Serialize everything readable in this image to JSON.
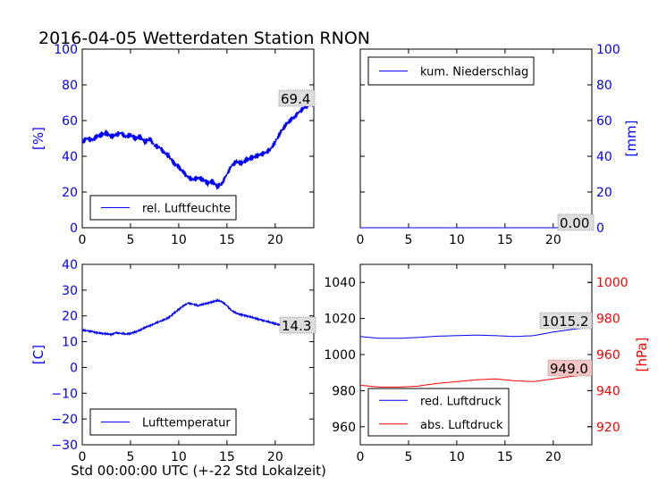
{
  "title": "2016-04-05 Wetterdaten Station RNON",
  "footer_xlabel": "Std 00:00:00 UTC (+-22 Std Lokalzeit)",
  "colors": {
    "blue": "#0000ff",
    "red": "#ff0000",
    "axis": "#000000",
    "annot_bg": "#dddddd",
    "annot_bg_red": "#f4c4c4"
  },
  "chart_data": [
    {
      "id": "humidity",
      "type": "line",
      "xlim": [
        0,
        24
      ],
      "xticks": [
        0,
        5,
        10,
        15,
        20
      ],
      "ylim": [
        0,
        100
      ],
      "yticks": [
        0,
        20,
        40,
        60,
        80,
        100
      ],
      "ylabel": "[%]",
      "ylabel_side": "left",
      "tick_color": "#0000ff",
      "legend_position": "lower-left",
      "annotation": "69.4",
      "series": [
        {
          "name": "rel. Luftfeuchte",
          "color": "#0000ff",
          "x": [
            0,
            0.5,
            1,
            1.5,
            2,
            2.5,
            3,
            3.5,
            4,
            4.5,
            5,
            5.5,
            6,
            6.5,
            7,
            7.5,
            8,
            8.5,
            9,
            9.5,
            10,
            10.5,
            11,
            11.5,
            12,
            12.5,
            13,
            13.5,
            14,
            14.5,
            15,
            15.5,
            16,
            16.5,
            17,
            17.5,
            18,
            18.5,
            19,
            19.5,
            20,
            20.5,
            21,
            21.5,
            22,
            22.5,
            23,
            23.5,
            24
          ],
          "y": [
            48,
            50,
            49,
            51,
            52,
            53,
            51,
            52,
            53,
            51,
            52,
            50,
            51,
            48,
            50,
            46,
            45,
            42,
            40,
            36,
            34,
            31,
            28,
            27,
            28,
            27,
            25,
            26,
            23,
            25,
            30,
            35,
            37,
            36,
            38,
            39,
            40,
            41,
            42,
            44,
            48,
            53,
            57,
            60,
            62,
            65,
            67,
            69,
            69.4
          ]
        }
      ]
    },
    {
      "id": "precip",
      "type": "line",
      "xlim": [
        0,
        24
      ],
      "xticks": [
        0,
        5,
        10,
        15,
        20
      ],
      "ylim": [
        0,
        100
      ],
      "yticks": [
        0,
        20,
        40,
        60,
        80,
        100
      ],
      "ylabel": "[mm]",
      "ylabel_side": "right",
      "tick_color": "#0000ff",
      "legend_position": "upper-left",
      "annotation": "0.00",
      "series": [
        {
          "name": "kum. Niederschlag",
          "color": "#0000ff",
          "x": [
            0,
            24
          ],
          "y": [
            0,
            0
          ]
        }
      ]
    },
    {
      "id": "temperature",
      "type": "line",
      "xlim": [
        0,
        24
      ],
      "xticks": [
        0,
        5,
        10,
        15,
        20
      ],
      "ylim": [
        -30,
        40
      ],
      "yticks": [
        -30,
        -20,
        -10,
        0,
        10,
        20,
        30,
        40
      ],
      "ylabel": "[C]",
      "ylabel_side": "left",
      "tick_color": "#0000ff",
      "legend_position": "lower-left",
      "annotation": "14.3",
      "series": [
        {
          "name": "Lufttemperatur",
          "color": "#0000ff",
          "x": [
            0,
            0.5,
            1,
            1.5,
            2,
            2.5,
            3,
            3.5,
            4,
            4.5,
            5,
            5.5,
            6,
            6.5,
            7,
            7.5,
            8,
            8.5,
            9,
            9.5,
            10,
            10.5,
            11,
            11.5,
            12,
            12.5,
            13,
            13.5,
            14,
            14.5,
            15,
            15.5,
            16,
            16.5,
            17,
            17.5,
            18,
            18.5,
            19,
            19.5,
            20,
            20.5,
            21,
            21.5,
            22,
            22.5,
            23,
            23.5,
            24
          ],
          "y": [
            14.5,
            14.2,
            14,
            13.5,
            13.2,
            13,
            12.8,
            13.5,
            13.2,
            13,
            13.2,
            13.8,
            14.5,
            15.5,
            16.2,
            17,
            17.8,
            18.5,
            19.5,
            21,
            22.5,
            24,
            25,
            24.5,
            24,
            24.5,
            25,
            25.5,
            26,
            25.5,
            24,
            22,
            21,
            20.5,
            20,
            19.5,
            19,
            18.5,
            18,
            17.5,
            17,
            16.5,
            16,
            15.5,
            15.2,
            15,
            14.8,
            14.5,
            14.3
          ]
        }
      ]
    },
    {
      "id": "pressure",
      "type": "line",
      "xlim": [
        0,
        24
      ],
      "xticks": [
        0,
        5,
        10,
        15,
        20
      ],
      "ylim": [
        950,
        1050
      ],
      "yticks": [
        960,
        980,
        1000,
        1020,
        1040
      ],
      "y2lim": [
        910,
        1010
      ],
      "y2ticks": [
        920,
        940,
        960,
        980,
        1000
      ],
      "y2label": "[hPa]",
      "tick_color": "#000000",
      "tick_color_right": "#ff0000",
      "legend_position": "lower-left",
      "annotations": [
        "1015.2",
        "949.0"
      ],
      "series": [
        {
          "name": "red. Luftdruck",
          "color": "#0000ff",
          "axis": "left",
          "x": [
            0,
            2,
            4,
            6,
            8,
            10,
            12,
            14,
            16,
            18,
            20,
            22,
            24
          ],
          "y": [
            1010,
            1009,
            1009,
            1009.5,
            1010.2,
            1010.5,
            1010.8,
            1010.5,
            1010,
            1010.5,
            1012.5,
            1014,
            1015.2
          ]
        },
        {
          "name": "abs. Luftdruck",
          "color": "#ff0000",
          "axis": "right",
          "x": [
            0,
            2,
            4,
            6,
            8,
            10,
            12,
            14,
            16,
            18,
            20,
            22,
            24
          ],
          "y": [
            943,
            942,
            942,
            942.5,
            944,
            945,
            946,
            946.5,
            945.5,
            945,
            946.5,
            948,
            949
          ]
        }
      ]
    }
  ]
}
